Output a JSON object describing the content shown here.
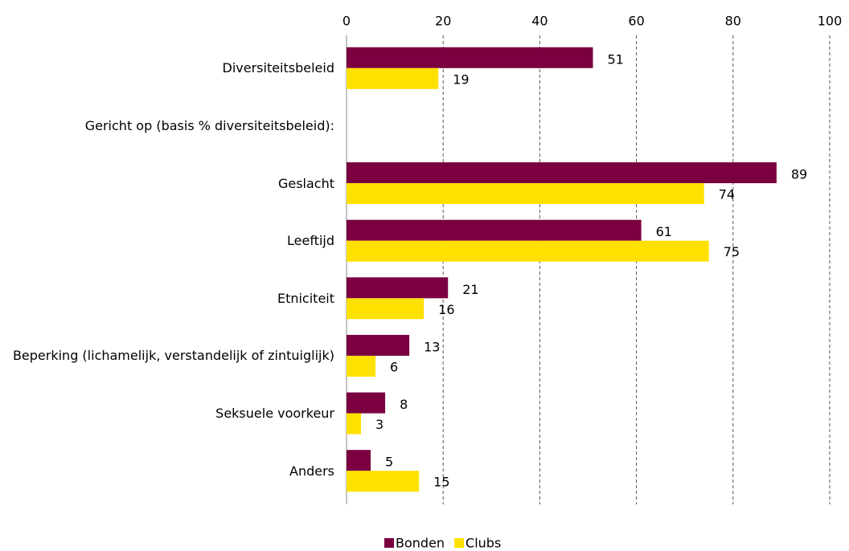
{
  "chart_data": {
    "type": "hbar",
    "categories": [
      "Diversiteitsbeleid",
      "Gericht op (basis % diversiteitsbeleid):",
      "Geslacht",
      "Leeftijd",
      "Etniciteit",
      "Beperking (lichamelijk, verstandelijk of zintuiglijk)",
      "Seksuele voorkeur",
      "Anders"
    ],
    "series": [
      {
        "name": "Bonden",
        "color": "#7a0040",
        "values": [
          51,
          null,
          89,
          61,
          21,
          13,
          8,
          5
        ]
      },
      {
        "name": "Clubs",
        "color": "#ffe100",
        "values": [
          19,
          null,
          74,
          75,
          16,
          6,
          3,
          15
        ]
      }
    ],
    "xlim": [
      0,
      100
    ],
    "xticks": [
      0,
      20,
      40,
      60,
      80,
      100
    ],
    "grid": true,
    "legend": "bottom"
  }
}
